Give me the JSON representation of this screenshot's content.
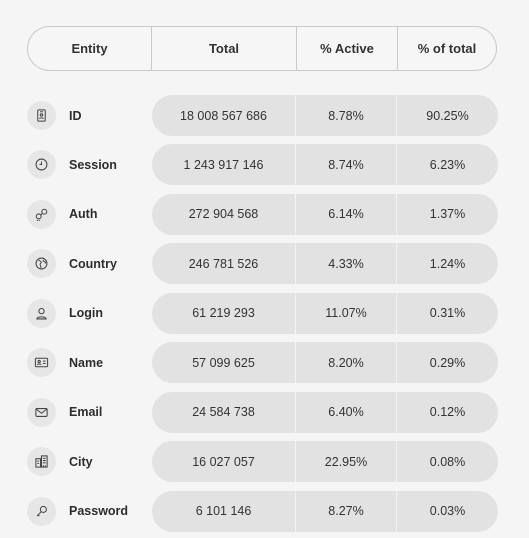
{
  "header": {
    "entity": "Entity",
    "total": "Total",
    "active": "% Active",
    "pct_total": "% of total"
  },
  "rows": [
    {
      "entity": "ID",
      "icon": "id-badge-icon",
      "total": "18 008 567 686",
      "active": "8.78%",
      "pct_total": "90.25%"
    },
    {
      "entity": "Session",
      "icon": "clock-icon",
      "total": "1 243 917 146",
      "active": "8.74%",
      "pct_total": "6.23%"
    },
    {
      "entity": "Auth",
      "icon": "key-auth-icon",
      "total": "272 904 568",
      "active": "6.14%",
      "pct_total": "1.37%"
    },
    {
      "entity": "Country",
      "icon": "globe-icon",
      "total": "246 781 526",
      "active": "4.33%",
      "pct_total": "1.24%"
    },
    {
      "entity": "Login",
      "icon": "user-icon",
      "total": "61 219 293",
      "active": "11.07%",
      "pct_total": "0.31%"
    },
    {
      "entity": "Name",
      "icon": "id-card-icon",
      "total": "57 099 625",
      "active": "8.20%",
      "pct_total": "0.29%"
    },
    {
      "entity": "Email",
      "icon": "envelope-icon",
      "total": "24 584 738",
      "active": "6.40%",
      "pct_total": "0.12%"
    },
    {
      "entity": "City",
      "icon": "buildings-icon",
      "total": "16 027 057",
      "active": "22.95%",
      "pct_total": "0.08%"
    },
    {
      "entity": "Password",
      "icon": "key-icon",
      "total": "6 101 146",
      "active": "8.27%",
      "pct_total": "0.03%"
    }
  ]
}
